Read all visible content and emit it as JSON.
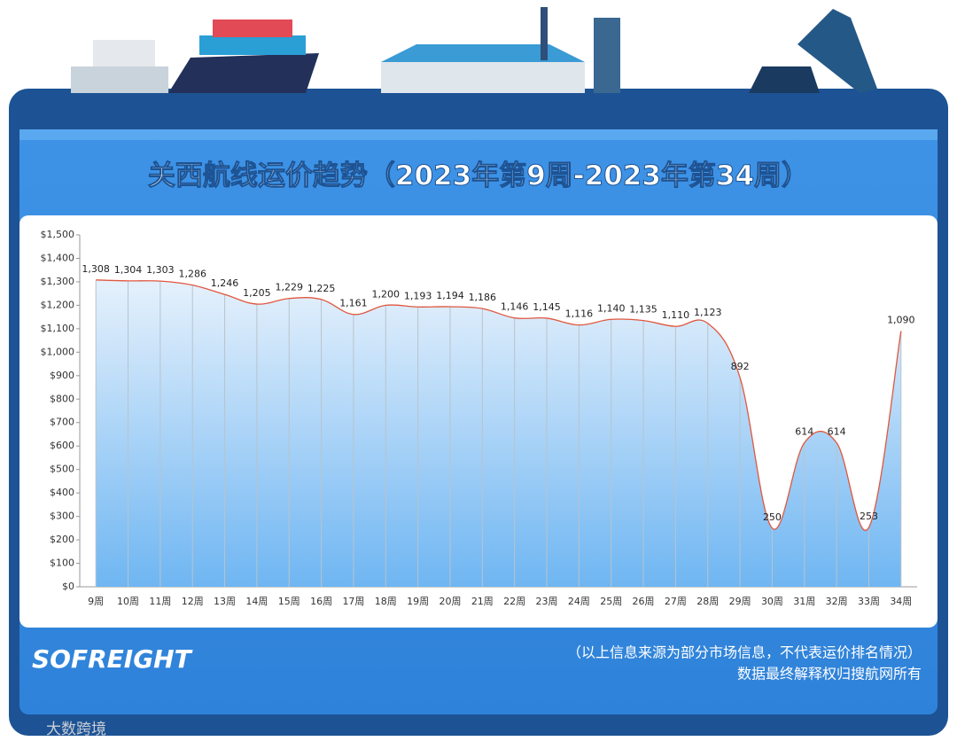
{
  "chart_data": {
    "type": "line",
    "title": "关西航线运价趋势（2023年第9周-2023年第34周）",
    "categories": [
      "9周",
      "10周",
      "11周",
      "12周",
      "13周",
      "14周",
      "15周",
      "16周",
      "17周",
      "18周",
      "19周",
      "20周",
      "21周",
      "22周",
      "23周",
      "24周",
      "25周",
      "26周",
      "27周",
      "28周",
      "29周",
      "30周",
      "31周",
      "32周",
      "33周",
      "34周"
    ],
    "series": [
      {
        "color": "#e0573f",
        "values": [
          1308,
          1304,
          1303,
          1286,
          1246,
          1205,
          1229,
          1225,
          1161,
          1200,
          1193,
          1194,
          1186,
          1146,
          1145,
          1116,
          1140,
          1135,
          1110,
          1123,
          892,
          250,
          614,
          614,
          253,
          1090
        ],
        "value_labels": [
          "1,308",
          "1,304",
          "1,303",
          "1,286",
          "1,246",
          "1,205",
          "1,229",
          "1,225",
          "1,161",
          "1,200",
          "1,193",
          "1,194",
          "1,186",
          "1,146",
          "1,145",
          "1,116",
          "1,140",
          "1,135",
          "1,110",
          "1,123",
          "892",
          "250",
          "614",
          "614",
          "253",
          "1,090"
        ]
      }
    ],
    "ylim": [
      0,
      1500
    ],
    "yticks": [
      {
        "value": 0,
        "label": "$0"
      },
      {
        "value": 100,
        "label": "$100"
      },
      {
        "value": 200,
        "label": "$200"
      },
      {
        "value": 300,
        "label": "$300"
      },
      {
        "value": 400,
        "label": "$400"
      },
      {
        "value": 500,
        "label": "$500"
      },
      {
        "value": 600,
        "label": "$600"
      },
      {
        "value": 700,
        "label": "$700"
      },
      {
        "value": 800,
        "label": "$800"
      },
      {
        "value": 900,
        "label": "$900"
      },
      {
        "value": 1000,
        "label": "$1,000"
      },
      {
        "value": 1100,
        "label": "$1,100"
      },
      {
        "value": 1200,
        "label": "$1,200"
      },
      {
        "value": 1300,
        "label": "$1,300"
      },
      {
        "value": 1400,
        "label": "$1,400"
      },
      {
        "value": 1500,
        "label": "$1,500"
      }
    ],
    "grid": false,
    "logo": "SOFREIGHT",
    "notes": [
      "（以上信息来源为部分市场信息，不代表运价排名情况）",
      "数据最终解释权归搜航网所有"
    ],
    "watermark": "大数跨境"
  }
}
